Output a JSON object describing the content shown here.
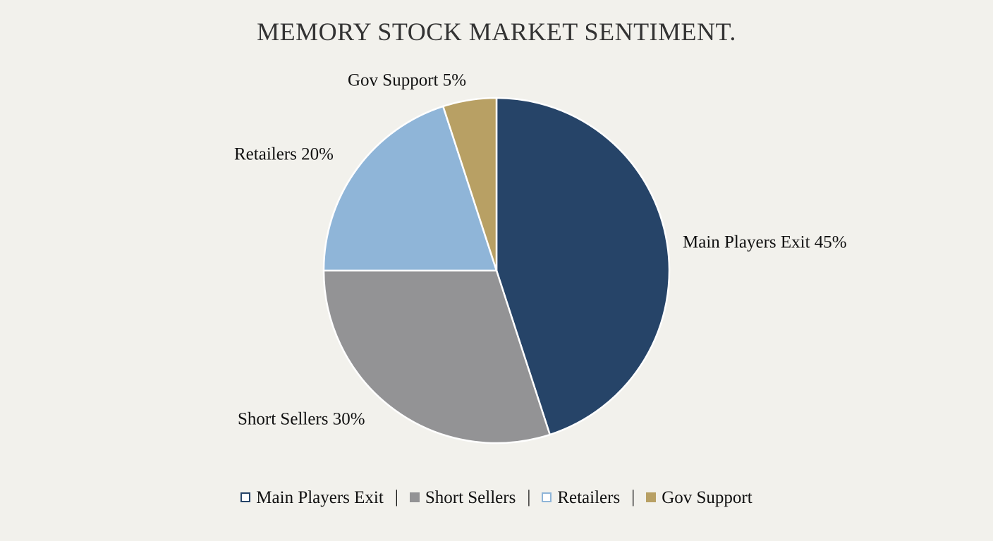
{
  "chart_data": {
    "type": "pie",
    "title": "MEMORY STOCK MARKET SENTIMENT.",
    "slices": [
      {
        "name": "Main Players Exit",
        "value": 45,
        "label": "Main Players Exit 45%",
        "color": "#264468"
      },
      {
        "name": "Short Sellers",
        "value": 30,
        "label": "Short Sellers 30%",
        "color": "#939395"
      },
      {
        "name": "Retailers",
        "value": 20,
        "label": "Retailers 20%",
        "color": "#8fb5d8"
      },
      {
        "name": "Gov Support",
        "value": 5,
        "label": "Gov Support 5%",
        "color": "#b8a064"
      }
    ],
    "start_angle_deg": 0,
    "direction": "clockwise",
    "legend": {
      "position": "bottom",
      "entries": [
        "Main Players Exit",
        "Short Sellers",
        "Retailers",
        "Gov Support"
      ],
      "swatch_styles": [
        "outline",
        "filled",
        "outline",
        "filled"
      ],
      "separator": "|"
    }
  }
}
